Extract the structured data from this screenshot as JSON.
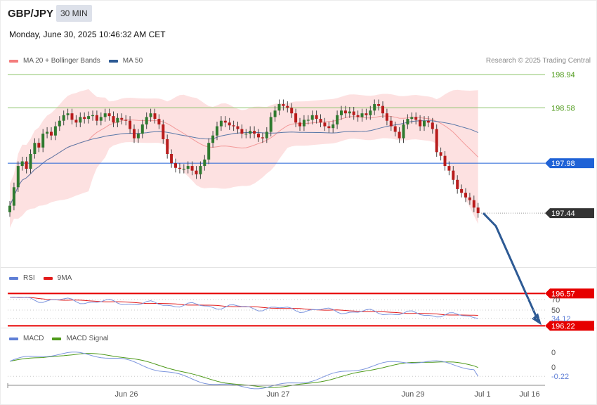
{
  "header": {
    "symbol": "GBP/JPY",
    "timeframe": "30 MIN",
    "datetime": "Monday, June 30, 2025 10:46:32 AM CET",
    "research": "Research © 2025 Trading Central"
  },
  "legends": {
    "price": [
      {
        "name": "MA 20 + Bollinger Bands",
        "color": "#f47c7c"
      },
      {
        "name": "MA 50",
        "color": "#2d5a94"
      }
    ],
    "rsi": [
      {
        "name": "RSI",
        "color": "#5f7fd6"
      },
      {
        "name": "9MA",
        "color": "#e21b1b"
      }
    ],
    "macd": [
      {
        "name": "MACD",
        "color": "#5f7fd6"
      },
      {
        "name": "MACD Signal",
        "color": "#4e9a1a"
      }
    ]
  },
  "chart_data": {
    "type": "candlestick",
    "x_labels": [
      "Jun 26",
      "Jun 27",
      "Jun 29",
      "Jul 1",
      "Jul 16"
    ],
    "levels": [
      {
        "value": 198.94,
        "label": "198.94",
        "kind": "resistance",
        "color": "#8cc46a"
      },
      {
        "value": 198.58,
        "label": "198.58",
        "kind": "resistance",
        "color": "#8cc46a"
      },
      {
        "value": 197.98,
        "label": "197.98",
        "kind": "pivot",
        "color": "#1f62d6"
      },
      {
        "value": 197.44,
        "label": "197.44",
        "kind": "last",
        "color": "#333333"
      },
      {
        "value": 196.57,
        "label": "196.57",
        "kind": "support",
        "color": "#e60000"
      },
      {
        "value": 196.22,
        "label": "196.22",
        "kind": "support",
        "color": "#e60000"
      }
    ],
    "forecast_arrow": {
      "from": 197.44,
      "via": 197.3,
      "to": 196.22,
      "color": "#2d5a94"
    },
    "close": [
      197.52,
      197.72,
      197.95,
      198.0,
      197.92,
      198.08,
      198.2,
      198.15,
      198.3,
      198.32,
      198.28,
      198.38,
      198.44,
      198.5,
      198.52,
      198.45,
      198.42,
      198.48,
      198.46,
      198.49,
      198.5,
      198.44,
      198.48,
      198.52,
      198.49,
      198.42,
      198.47,
      198.45,
      198.44,
      198.35,
      198.25,
      198.3,
      198.4,
      198.48,
      198.52,
      198.46,
      198.4,
      198.24,
      198.08,
      197.98,
      197.93,
      197.92,
      197.92,
      197.95,
      197.9,
      197.86,
      197.95,
      198.02,
      198.2,
      198.28,
      198.38,
      198.44,
      198.42,
      198.39,
      198.38,
      198.35,
      198.3,
      198.3,
      198.33,
      198.3,
      198.26,
      198.25,
      198.32,
      198.48,
      198.55,
      198.62,
      198.6,
      198.58,
      198.52,
      198.42,
      198.38,
      198.45,
      198.45,
      198.5,
      198.46,
      198.42,
      198.38,
      198.36,
      198.4,
      198.5,
      198.55,
      198.52,
      198.54,
      198.5,
      198.48,
      198.52,
      198.5,
      198.55,
      198.62,
      198.6,
      198.52,
      198.44,
      198.38,
      198.32,
      198.25,
      198.4,
      198.46,
      198.48,
      198.45,
      198.38,
      198.44,
      198.42,
      198.35,
      198.1,
      198.06,
      197.95,
      197.9,
      197.8,
      197.7,
      197.66,
      197.61,
      197.58,
      197.5,
      197.44
    ],
    "open": [
      197.45,
      197.52,
      197.72,
      197.95,
      198.0,
      197.92,
      198.08,
      198.2,
      198.15,
      198.3,
      198.32,
      198.28,
      198.38,
      198.44,
      198.5,
      198.52,
      198.45,
      198.42,
      198.48,
      198.46,
      198.49,
      198.5,
      198.44,
      198.48,
      198.52,
      198.49,
      198.42,
      198.47,
      198.45,
      198.44,
      198.35,
      198.25,
      198.3,
      198.4,
      198.48,
      198.52,
      198.46,
      198.4,
      198.24,
      198.08,
      197.98,
      197.93,
      197.92,
      197.92,
      197.95,
      197.9,
      197.86,
      197.95,
      198.02,
      198.2,
      198.28,
      198.38,
      198.44,
      198.42,
      198.39,
      198.38,
      198.35,
      198.3,
      198.3,
      198.33,
      198.3,
      198.26,
      198.25,
      198.32,
      198.48,
      198.55,
      198.62,
      198.6,
      198.58,
      198.52,
      198.42,
      198.38,
      198.45,
      198.45,
      198.5,
      198.46,
      198.42,
      198.38,
      198.36,
      198.4,
      198.5,
      198.55,
      198.52,
      198.54,
      198.5,
      198.48,
      198.52,
      198.5,
      198.55,
      198.62,
      198.6,
      198.52,
      198.44,
      198.38,
      198.32,
      198.25,
      198.4,
      198.46,
      198.48,
      198.45,
      198.38,
      198.44,
      198.42,
      198.35,
      198.1,
      198.06,
      197.95,
      197.9,
      197.8,
      197.7,
      197.66,
      197.61,
      197.58,
      197.5
    ],
    "rsi_last": "34.12",
    "rsi_levels": [
      "70",
      "50"
    ],
    "macd_labels": [
      "0",
      "0"
    ],
    "macd_last": "-0.22"
  }
}
